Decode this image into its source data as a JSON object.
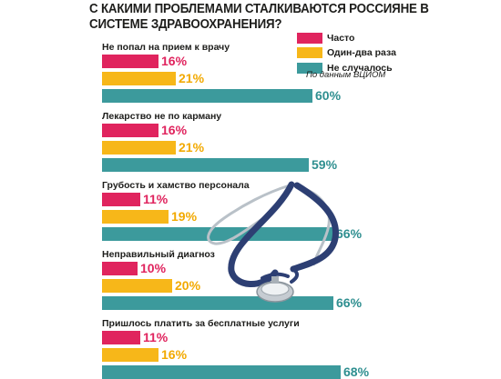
{
  "chart_data": {
    "type": "bar",
    "orientation": "horizontal",
    "title": "С КАКИМИ ПРОБЛЕМАМИ СТАЛКИВАЮТСЯ РОССИЯНЕ В СИСТЕМЕ ЗДРАВООХРАНЕНИЯ?",
    "source": "По данным ВЦИОМ",
    "legend_position": "top-right",
    "grid": false,
    "unit": "%",
    "categories": [
      "Не попал на прием к врачу",
      "Лекарство не по карману",
      "Грубость и хамство персонала",
      "Неправильный диагноз",
      "Пришлось платить за бесплатные услуги"
    ],
    "series": [
      {
        "name": "Часто",
        "color": "#e0245e",
        "values": [
          16,
          16,
          11,
          10,
          11
        ]
      },
      {
        "name": "Один-два раза",
        "color": "#f7b719",
        "values": [
          21,
          21,
          19,
          20,
          16
        ]
      },
      {
        "name": "Не случалось",
        "color": "#3c9a9c",
        "values": [
          60,
          59,
          66,
          66,
          68
        ]
      }
    ],
    "xlim": [
      0,
      68
    ]
  },
  "decor": {
    "image": "stethoscope-illustration"
  }
}
